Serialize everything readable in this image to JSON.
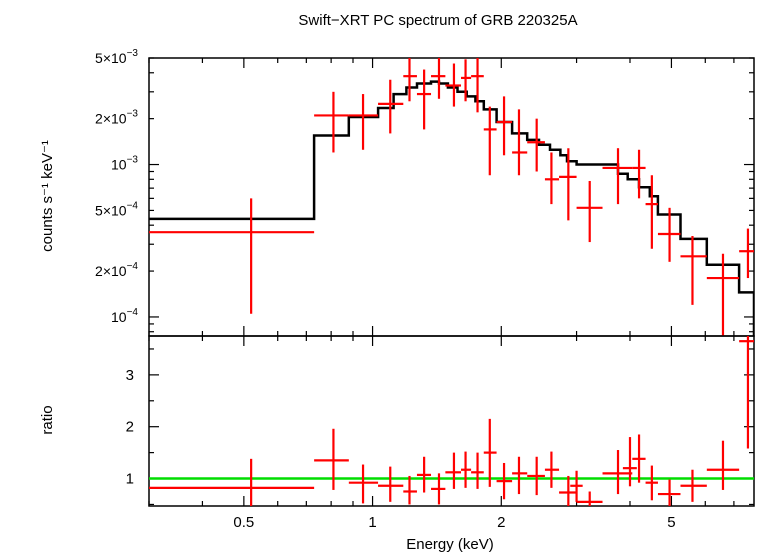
{
  "chart_data": [
    {
      "panel": "top",
      "type": "scatter",
      "title": "Swift−XRT PC spectrum of GRB 220325A",
      "xlabel": "",
      "ylabel": "counts s⁻¹ keV⁻¹",
      "xscale": "log",
      "yscale": "log",
      "xlim": [
        0.3,
        7.8
      ],
      "ylim": [
        7.5e-05,
        0.005
      ],
      "y_tick_labels": [
        {
          "value": 0.005,
          "base": "5×10",
          "exp": "−3"
        },
        {
          "value": 0.002,
          "base": "2×10",
          "exp": "−3"
        },
        {
          "value": 0.001,
          "base": "10",
          "exp": "−3"
        },
        {
          "value": 0.0005,
          "base": "5×10",
          "exp": "−4"
        },
        {
          "value": 0.0002,
          "base": "2×10",
          "exp": "−4"
        },
        {
          "value": 0.0001,
          "base": "10",
          "exp": "−4"
        }
      ],
      "colors": {
        "data": "#ff0000",
        "model": "#000000"
      },
      "series": [
        {
          "kind": "data-with-errorbars",
          "points": [
            {
              "x": 0.52,
              "xlo": 0.3,
              "xhi": 0.73,
              "y": 0.00036,
              "ylo": 0.000105,
              "yhi": 0.0006
            },
            {
              "x": 0.81,
              "xlo": 0.73,
              "xhi": 0.88,
              "y": 0.0021,
              "ylo": 0.0012,
              "yhi": 0.003
            },
            {
              "x": 0.95,
              "xlo": 0.88,
              "xhi": 1.03,
              "y": 0.0021,
              "ylo": 0.00125,
              "yhi": 0.0029
            },
            {
              "x": 1.1,
              "xlo": 1.03,
              "xhi": 1.18,
              "y": 0.0025,
              "ylo": 0.0016,
              "yhi": 0.0036
            },
            {
              "x": 1.22,
              "xlo": 1.18,
              "xhi": 1.27,
              "y": 0.0038,
              "ylo": 0.0026,
              "yhi": 0.005
            },
            {
              "x": 1.32,
              "xlo": 1.27,
              "xhi": 1.37,
              "y": 0.0029,
              "ylo": 0.0017,
              "yhi": 0.0042
            },
            {
              "x": 1.43,
              "xlo": 1.37,
              "xhi": 1.48,
              "y": 0.0038,
              "ylo": 0.0027,
              "yhi": 0.005
            },
            {
              "x": 1.55,
              "xlo": 1.48,
              "xhi": 1.61,
              "y": 0.0033,
              "ylo": 0.0024,
              "yhi": 0.0046
            },
            {
              "x": 1.65,
              "xlo": 1.61,
              "xhi": 1.7,
              "y": 0.0037,
              "ylo": 0.0026,
              "yhi": 0.0049
            },
            {
              "x": 1.76,
              "xlo": 1.7,
              "xhi": 1.82,
              "y": 0.0038,
              "ylo": 0.0022,
              "yhi": 0.005
            },
            {
              "x": 1.88,
              "xlo": 1.82,
              "xhi": 1.95,
              "y": 0.0017,
              "ylo": 0.00085,
              "yhi": 0.0024
            },
            {
              "x": 2.03,
              "xlo": 1.95,
              "xhi": 2.12,
              "y": 0.0019,
              "ylo": 0.00115,
              "yhi": 0.0028
            },
            {
              "x": 2.2,
              "xlo": 2.12,
              "xhi": 2.3,
              "y": 0.0012,
              "ylo": 0.00085,
              "yhi": 0.0023
            },
            {
              "x": 2.42,
              "xlo": 2.3,
              "xhi": 2.53,
              "y": 0.0014,
              "ylo": 0.0009,
              "yhi": 0.002
            },
            {
              "x": 2.62,
              "xlo": 2.53,
              "xhi": 2.73,
              "y": 0.0008,
              "ylo": 0.00055,
              "yhi": 0.0012
            },
            {
              "x": 2.87,
              "xlo": 2.73,
              "xhi": 3.0,
              "y": 0.00083,
              "ylo": 0.00043,
              "yhi": 0.00128
            },
            {
              "x": 3.22,
              "xlo": 3.0,
              "xhi": 3.45,
              "y": 0.00052,
              "ylo": 0.00031,
              "yhi": 0.00078
            },
            {
              "x": 3.75,
              "xlo": 3.45,
              "xhi": 4.05,
              "y": 0.00095,
              "ylo": 0.00055,
              "yhi": 0.00128
            },
            {
              "x": 4.2,
              "xlo": 4.05,
              "xhi": 4.35,
              "y": 0.00095,
              "ylo": 0.0006,
              "yhi": 0.00125
            },
            {
              "x": 4.5,
              "xlo": 4.35,
              "xhi": 4.65,
              "y": 0.00055,
              "ylo": 0.00028,
              "yhi": 0.00085
            },
            {
              "x": 4.95,
              "xlo": 4.65,
              "xhi": 5.25,
              "y": 0.00035,
              "ylo": 0.00023,
              "yhi": 0.00052
            },
            {
              "x": 5.6,
              "xlo": 5.25,
              "xhi": 6.05,
              "y": 0.00025,
              "ylo": 0.00012,
              "yhi": 0.00034
            },
            {
              "x": 6.6,
              "xlo": 6.05,
              "xhi": 7.2,
              "y": 0.00018,
              "ylo": 7.5e-05,
              "yhi": 0.00026
            },
            {
              "x": 7.55,
              "xlo": 7.2,
              "xhi": 7.8,
              "y": 0.00027,
              "ylo": 0.00018,
              "yhi": 0.00038
            }
          ]
        },
        {
          "kind": "model-step",
          "edges": [
            0.3,
            0.73,
            0.88,
            1.03,
            1.12,
            1.2,
            1.27,
            1.37,
            1.43,
            1.5,
            1.58,
            1.66,
            1.74,
            1.82,
            1.95,
            2.12,
            2.3,
            2.45,
            2.6,
            2.75,
            2.85,
            3.0,
            3.45,
            3.75,
            3.95,
            4.2,
            4.45,
            4.65,
            5.25,
            6.05,
            7.2,
            7.8
          ],
          "values": [
            0.00044,
            0.00155,
            0.00205,
            0.00235,
            0.0029,
            0.0032,
            0.0034,
            0.0035,
            0.0034,
            0.0032,
            0.003,
            0.0028,
            0.0026,
            0.0023,
            0.0019,
            0.0016,
            0.00145,
            0.00135,
            0.00125,
            0.00115,
            0.00105,
            0.001,
            0.001,
            0.00087,
            0.0008,
            0.00071,
            0.00062,
            0.00047,
            0.000325,
            0.00022,
            0.000145
          ]
        }
      ]
    },
    {
      "panel": "bottom",
      "type": "scatter",
      "xlabel": "Energy (keV)",
      "ylabel": "ratio",
      "xscale": "log",
      "yscale": "linear",
      "xlim": [
        0.3,
        7.8
      ],
      "ylim": [
        0.47,
        3.75
      ],
      "x_ticks": [
        {
          "value": 0.5,
          "label": "0.5"
        },
        {
          "value": 1,
          "label": "1"
        },
        {
          "value": 2,
          "label": "2"
        },
        {
          "value": 5,
          "label": "5"
        }
      ],
      "y_ticks": [
        {
          "value": 1,
          "label": "1"
        },
        {
          "value": 2,
          "label": "2"
        },
        {
          "value": 3,
          "label": "3"
        }
      ],
      "reference_line": {
        "y": 1,
        "color": "#00dd00"
      },
      "series": [
        {
          "kind": "data-with-errorbars",
          "points": [
            {
              "x": 0.52,
              "xlo": 0.3,
              "xhi": 0.73,
              "y": 0.82,
              "ylo": 0.47,
              "yhi": 1.38
            },
            {
              "x": 0.81,
              "xlo": 0.73,
              "xhi": 0.88,
              "y": 1.35,
              "ylo": 0.78,
              "yhi": 1.96
            },
            {
              "x": 0.95,
              "xlo": 0.88,
              "xhi": 1.03,
              "y": 0.92,
              "ylo": 0.52,
              "yhi": 1.27
            },
            {
              "x": 1.1,
              "xlo": 1.03,
              "xhi": 1.18,
              "y": 0.86,
              "ylo": 0.55,
              "yhi": 1.23
            },
            {
              "x": 1.22,
              "xlo": 1.18,
              "xhi": 1.27,
              "y": 0.75,
              "ylo": 0.5,
              "yhi": 1.05
            },
            {
              "x": 1.32,
              "xlo": 1.27,
              "xhi": 1.37,
              "y": 1.07,
              "ylo": 0.73,
              "yhi": 1.42
            },
            {
              "x": 1.43,
              "xlo": 1.37,
              "xhi": 1.48,
              "y": 0.8,
              "ylo": 0.5,
              "yhi": 1.1
            },
            {
              "x": 1.55,
              "xlo": 1.48,
              "xhi": 1.61,
              "y": 1.12,
              "ylo": 0.8,
              "yhi": 1.5
            },
            {
              "x": 1.65,
              "xlo": 1.61,
              "xhi": 1.7,
              "y": 1.17,
              "ylo": 0.82,
              "yhi": 1.52
            },
            {
              "x": 1.76,
              "xlo": 1.7,
              "xhi": 1.82,
              "y": 1.12,
              "ylo": 0.8,
              "yhi": 1.5
            },
            {
              "x": 1.88,
              "xlo": 1.82,
              "xhi": 1.95,
              "y": 1.5,
              "ylo": 0.84,
              "yhi": 2.15
            },
            {
              "x": 2.03,
              "xlo": 1.95,
              "xhi": 2.12,
              "y": 0.95,
              "ylo": 0.6,
              "yhi": 1.3
            },
            {
              "x": 2.2,
              "xlo": 2.12,
              "xhi": 2.3,
              "y": 1.1,
              "ylo": 0.7,
              "yhi": 1.42
            },
            {
              "x": 2.42,
              "xlo": 2.3,
              "xhi": 2.53,
              "y": 1.05,
              "ylo": 0.68,
              "yhi": 1.42
            },
            {
              "x": 2.62,
              "xlo": 2.53,
              "xhi": 2.73,
              "y": 1.17,
              "ylo": 0.82,
              "yhi": 1.52
            },
            {
              "x": 2.87,
              "xlo": 2.73,
              "xhi": 3.0,
              "y": 0.73,
              "ylo": 0.47,
              "yhi": 1.05
            },
            {
              "x": 3.0,
              "xlo": 2.9,
              "xhi": 3.1,
              "y": 0.86,
              "ylo": 0.55,
              "yhi": 1.15
            },
            {
              "x": 3.22,
              "xlo": 3.0,
              "xhi": 3.45,
              "y": 0.55,
              "ylo": 0.47,
              "yhi": 0.75
            },
            {
              "x": 3.75,
              "xlo": 3.45,
              "xhi": 4.05,
              "y": 1.1,
              "ylo": 0.7,
              "yhi": 1.55
            },
            {
              "x": 4.0,
              "xlo": 3.85,
              "xhi": 4.15,
              "y": 1.2,
              "ylo": 0.85,
              "yhi": 1.8
            },
            {
              "x": 4.2,
              "xlo": 4.05,
              "xhi": 4.35,
              "y": 1.38,
              "ylo": 0.92,
              "yhi": 1.85
            },
            {
              "x": 4.5,
              "xlo": 4.35,
              "xhi": 4.65,
              "y": 0.92,
              "ylo": 0.58,
              "yhi": 1.25
            },
            {
              "x": 4.95,
              "xlo": 4.65,
              "xhi": 5.25,
              "y": 0.7,
              "ylo": 0.47,
              "yhi": 0.98
            },
            {
              "x": 5.6,
              "xlo": 5.25,
              "xhi": 6.05,
              "y": 0.86,
              "ylo": 0.55,
              "yhi": 1.17
            },
            {
              "x": 6.6,
              "xlo": 6.05,
              "xhi": 7.2,
              "y": 1.17,
              "ylo": 0.78,
              "yhi": 1.73
            },
            {
              "x": 7.55,
              "xlo": 7.2,
              "xhi": 7.8,
              "y": 3.65,
              "ylo": 1.58,
              "yhi": 3.75
            }
          ]
        }
      ]
    }
  ]
}
